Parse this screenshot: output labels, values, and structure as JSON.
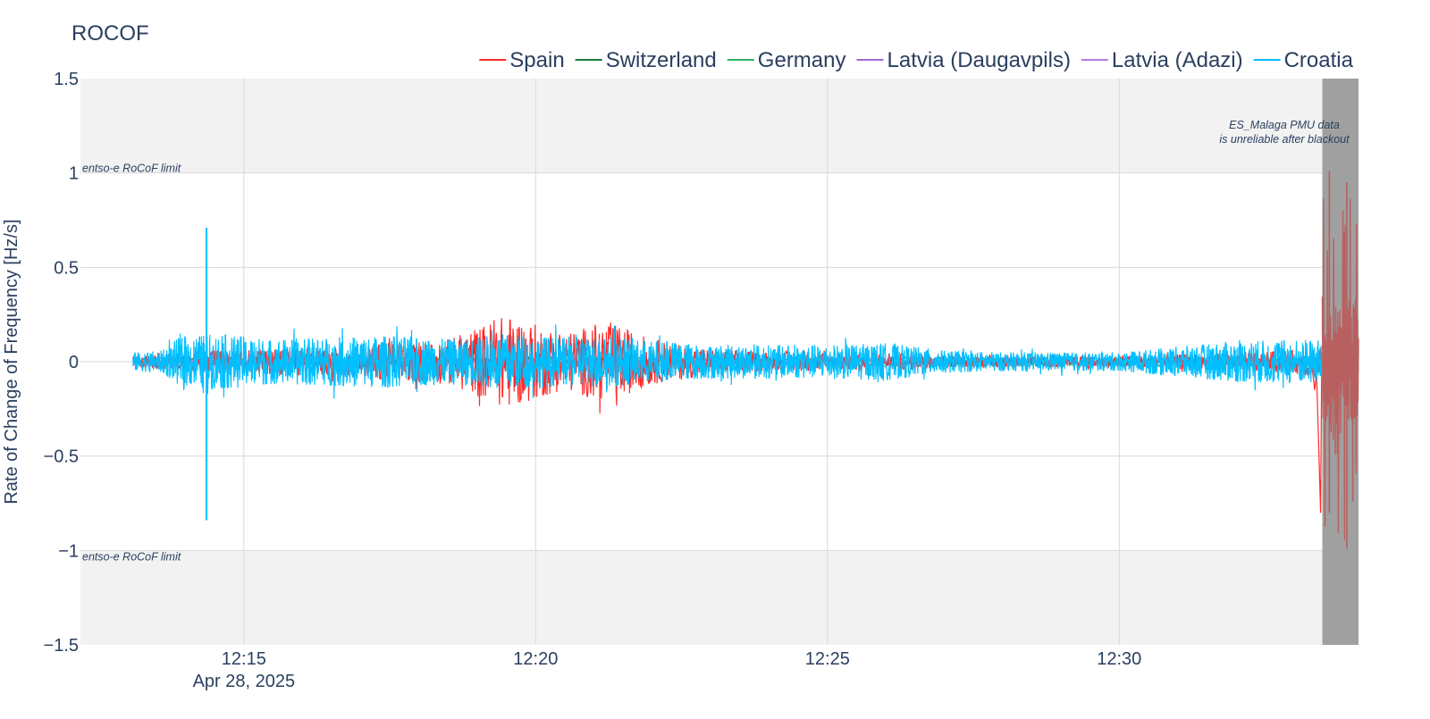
{
  "chart_data": {
    "type": "line",
    "title": "ROCOF",
    "xlabel": "",
    "ylabel": "Rate of Change of Frequency [Hz/s]",
    "x_date_label": "Apr 28, 2025",
    "x_range_minutes": [
      12.2,
      34.1
    ],
    "ylim": [
      -1.5,
      1.5
    ],
    "x_ticks": [
      {
        "minute": 15,
        "label": "12:15"
      },
      {
        "minute": 20,
        "label": "12:20"
      },
      {
        "minute": 25,
        "label": "12:25"
      },
      {
        "minute": 30,
        "label": "12:30"
      }
    ],
    "y_ticks": [
      {
        "value": 1.5,
        "label": "1.5"
      },
      {
        "value": 1,
        "label": "1"
      },
      {
        "value": 0.5,
        "label": "0.5"
      },
      {
        "value": 0,
        "label": "0"
      },
      {
        "value": -0.5,
        "label": "−0.5"
      },
      {
        "value": -1,
        "label": "−1"
      },
      {
        "value": -1.5,
        "label": "−1.5"
      }
    ],
    "limits": {
      "upper": 1,
      "lower": -1,
      "upper_label": "entso-e RoCoF limit",
      "lower_label": "entso-e RoCoF limit"
    },
    "blackout": {
      "start_minute": 33.48,
      "end_minute": 34.1,
      "annotation_line1": "ES_Malaga PMU data",
      "annotation_line2": "is unreliable after blackout"
    },
    "legend_position": "top-right",
    "series": [
      {
        "name": "Spain",
        "color": "#ff2a2a"
      },
      {
        "name": "Switzerland",
        "color": "#1b7a3e"
      },
      {
        "name": "Germany",
        "color": "#2db36a"
      },
      {
        "name": "Latvia (Daugavpils)",
        "color": "#9b6bd6"
      },
      {
        "name": "Latvia (Adazi)",
        "color": "#b07fe6"
      },
      {
        "name": "Croatia",
        "color": "#00bfff"
      }
    ],
    "events": [
      {
        "series": "Croatia",
        "minute": 14.36,
        "max": 0.71,
        "min": -0.84
      },
      {
        "series": "Spain",
        "minute": 33.6,
        "max": 1.01,
        "min": -0.8
      },
      {
        "series": "Spain",
        "minute": 33.9,
        "max": 0.95,
        "min": -0.99
      }
    ],
    "amplitude_envelope": [
      {
        "minute": 13.1,
        "croatia": 0.05,
        "spain": 0.03
      },
      {
        "minute": 13.6,
        "croatia": 0.06,
        "spain": 0.04
      },
      {
        "minute": 13.9,
        "croatia": 0.13,
        "spain": 0.05
      },
      {
        "minute": 14.5,
        "croatia": 0.15,
        "spain": 0.06
      },
      {
        "minute": 15.5,
        "croatia": 0.12,
        "spain": 0.07
      },
      {
        "minute": 16.5,
        "croatia": 0.13,
        "spain": 0.08
      },
      {
        "minute": 17.5,
        "croatia": 0.14,
        "spain": 0.1
      },
      {
        "minute": 18.5,
        "croatia": 0.12,
        "spain": 0.12
      },
      {
        "minute": 19.5,
        "croatia": 0.15,
        "spain": 0.25
      },
      {
        "minute": 20.5,
        "croatia": 0.13,
        "spain": 0.15
      },
      {
        "minute": 21.2,
        "croatia": 0.14,
        "spain": 0.22
      },
      {
        "minute": 22.0,
        "croatia": 0.11,
        "spain": 0.12
      },
      {
        "minute": 23.0,
        "croatia": 0.09,
        "spain": 0.07
      },
      {
        "minute": 24.0,
        "croatia": 0.09,
        "spain": 0.05
      },
      {
        "minute": 25.0,
        "croatia": 0.09,
        "spain": 0.05
      },
      {
        "minute": 26.0,
        "croatia": 0.1,
        "spain": 0.05
      },
      {
        "minute": 27.0,
        "croatia": 0.06,
        "spain": 0.03
      },
      {
        "minute": 28.0,
        "croatia": 0.05,
        "spain": 0.03
      },
      {
        "minute": 29.0,
        "croatia": 0.05,
        "spain": 0.03
      },
      {
        "minute": 30.0,
        "croatia": 0.05,
        "spain": 0.03
      },
      {
        "minute": 31.0,
        "croatia": 0.08,
        "spain": 0.04
      },
      {
        "minute": 32.0,
        "croatia": 0.11,
        "spain": 0.05
      },
      {
        "minute": 33.0,
        "croatia": 0.12,
        "spain": 0.06
      },
      {
        "minute": 33.45,
        "croatia": 0.12,
        "spain": 0.1
      },
      {
        "minute": 34.1,
        "croatia": 0.1,
        "spain": 0.3
      }
    ]
  }
}
